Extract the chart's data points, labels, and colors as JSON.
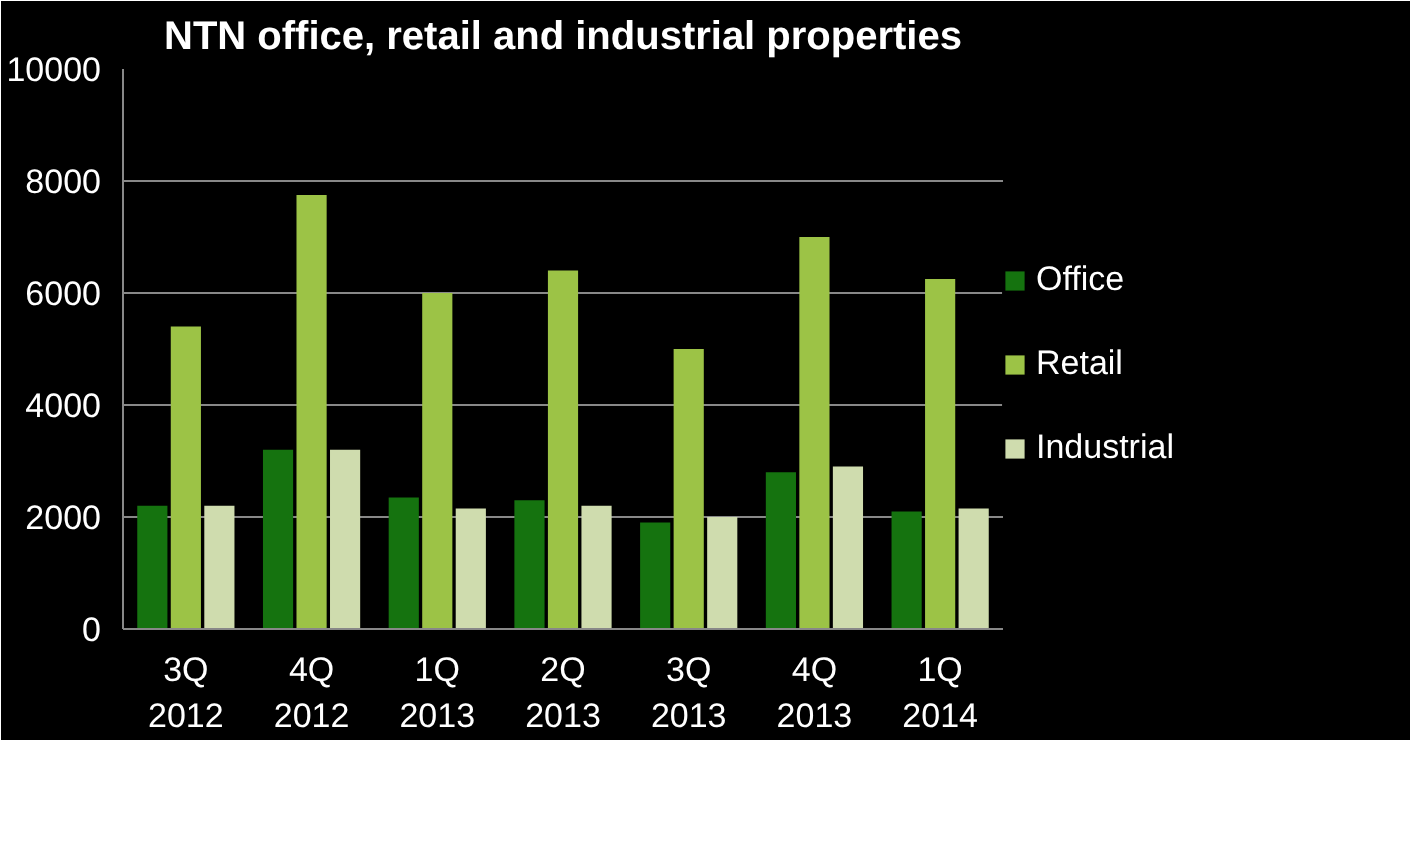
{
  "chart_data": {
    "type": "bar",
    "title": "NTN office, retail and industrial properties",
    "categories": [
      "3Q 2012",
      "4Q 2012",
      "1Q 2013",
      "2Q 2013",
      "3Q 2013",
      "4Q 2013",
      "1Q 2014"
    ],
    "series": [
      {
        "name": "Office",
        "color": "#15730f",
        "values": [
          2200,
          3200,
          2350,
          2300,
          1900,
          2800,
          2100
        ]
      },
      {
        "name": "Retail",
        "color": "#9cc346",
        "values": [
          5400,
          7750,
          6000,
          6400,
          5000,
          7000,
          6250
        ]
      },
      {
        "name": "Industrial",
        "color": "#cfdcae",
        "values": [
          2200,
          3200,
          2150,
          2200,
          2000,
          2900,
          2150
        ]
      }
    ],
    "ylim": [
      0,
      10000
    ],
    "yticks": [
      0,
      2000,
      4000,
      6000,
      8000,
      10000
    ],
    "grid": "y",
    "legend": "right"
  }
}
